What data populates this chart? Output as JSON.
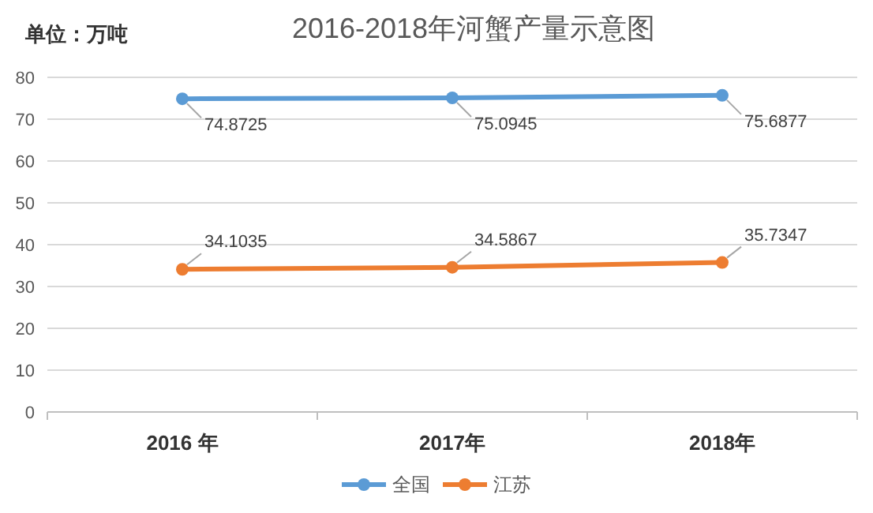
{
  "chart_data": {
    "type": "line",
    "title": "2016-2018年河蟹产量示意图",
    "annotations": [
      "单位：万吨"
    ],
    "categories": [
      "2016 年",
      "2017年",
      "2018年"
    ],
    "series": [
      {
        "name": "全国",
        "color": "#5b9bd5",
        "values": [
          74.8725,
          75.0945,
          75.6877
        ]
      },
      {
        "name": "江苏",
        "color": "#ed7d31",
        "values": [
          34.1035,
          34.5867,
          35.7347
        ]
      }
    ],
    "ylim": [
      0,
      80
    ],
    "yticks": [
      0,
      10,
      20,
      30,
      40,
      50,
      60,
      70,
      80
    ],
    "grid": "y",
    "legend": "bottom",
    "marker": "circle",
    "line_style": "solid",
    "data_labels": true
  }
}
